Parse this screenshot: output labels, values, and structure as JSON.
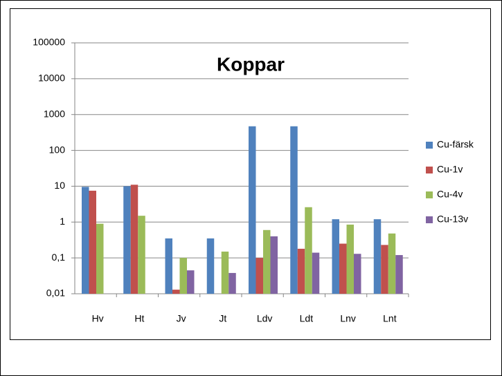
{
  "chart_data": {
    "type": "bar",
    "title": "Koppar",
    "categories": [
      "Hv",
      "Ht",
      "Jv",
      "Jt",
      "Ldv",
      "Ldt",
      "Lnv",
      "Lnt"
    ],
    "series": [
      {
        "name": "Cu-färsk",
        "color": "#4f81bd",
        "values": [
          9.6,
          10,
          0.35,
          0.35,
          470,
          470,
          1.2,
          1.2
        ]
      },
      {
        "name": "Cu-1v",
        "color": "#c0504d",
        "values": [
          7.5,
          11,
          0.013,
          null,
          0.1,
          0.18,
          0.25,
          0.23
        ]
      },
      {
        "name": "Cu-4v",
        "color": "#9bbb59",
        "values": [
          0.9,
          1.5,
          0.1,
          0.15,
          0.6,
          2.6,
          0.85,
          0.48
        ]
      },
      {
        "name": "Cu-13v",
        "color": "#8064a2",
        "values": [
          null,
          null,
          0.045,
          0.038,
          0.4,
          0.14,
          0.13,
          0.12
        ]
      }
    ],
    "log_scale": true,
    "ylim": [
      0.01,
      100000
    ],
    "yticks": [
      {
        "value": 0.01,
        "label": "0,01"
      },
      {
        "value": 0.1,
        "label": "0,1"
      },
      1,
      10,
      100,
      1000,
      10000,
      100000
    ],
    "grid": true,
    "legend": "right"
  }
}
